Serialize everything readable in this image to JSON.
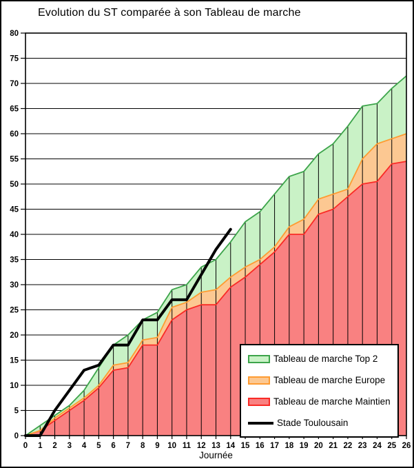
{
  "chart_data": {
    "type": "area+line",
    "title": "Evolution du ST comparée à son Tableau de marche",
    "xlabel": "Journée",
    "xlim": [
      0,
      26
    ],
    "ylim": [
      0,
      80
    ],
    "y_tick_step": 5,
    "y_ticks": [
      0,
      5,
      10,
      15,
      20,
      25,
      30,
      35,
      40,
      45,
      50,
      55,
      60,
      65,
      70,
      75,
      80
    ],
    "x_ticks": [
      0,
      1,
      2,
      3,
      4,
      5,
      6,
      7,
      8,
      9,
      10,
      11,
      12,
      13,
      14,
      15,
      16,
      17,
      18,
      19,
      20,
      21,
      22,
      23,
      24,
      25,
      26
    ],
    "grid": "horizontal",
    "drop_lines": "vertical-at-each-x",
    "legend_position": "bottom-right",
    "series": [
      {
        "name": "Tableau de marche Top 2",
        "type": "area",
        "fill": "#c9f2c6",
        "stroke": "#3ca44a",
        "values": [
          0,
          2,
          4,
          6,
          9,
          13.5,
          18,
          20,
          23,
          24.5,
          29,
          30,
          33.5,
          35,
          38.5,
          42.5,
          44.5,
          48,
          51.5,
          52.5,
          56,
          58,
          61.5,
          65.5,
          66,
          69,
          71.5
        ]
      },
      {
        "name": "Tableau de marche Europe",
        "type": "area",
        "fill": "#fcc892",
        "stroke": "#ff9b30",
        "values": [
          0,
          1,
          3.5,
          5.5,
          7.5,
          10,
          14,
          14.5,
          19,
          19.5,
          25.5,
          26.5,
          28.5,
          29,
          31.5,
          33.5,
          35,
          37.5,
          41.5,
          43,
          47,
          48,
          49,
          55,
          58,
          59,
          60
        ]
      },
      {
        "name": "Tableau de marche Maintien",
        "type": "area",
        "fill": "#f98181",
        "stroke": "#f92a25",
        "values": [
          0,
          1,
          3,
          5,
          7,
          9.5,
          13,
          13.5,
          18,
          18,
          23,
          25,
          26,
          26,
          29.5,
          31.5,
          34,
          36.5,
          40,
          40,
          44,
          45,
          47.5,
          50,
          50.5,
          54,
          54.5
        ]
      },
      {
        "name": "Stade Toulousain",
        "type": "line",
        "stroke": "#000000",
        "line_width": 4,
        "values": [
          0,
          0,
          5,
          9,
          13,
          14,
          18,
          18,
          23,
          23,
          27,
          27,
          32,
          37,
          41
        ]
      }
    ]
  }
}
